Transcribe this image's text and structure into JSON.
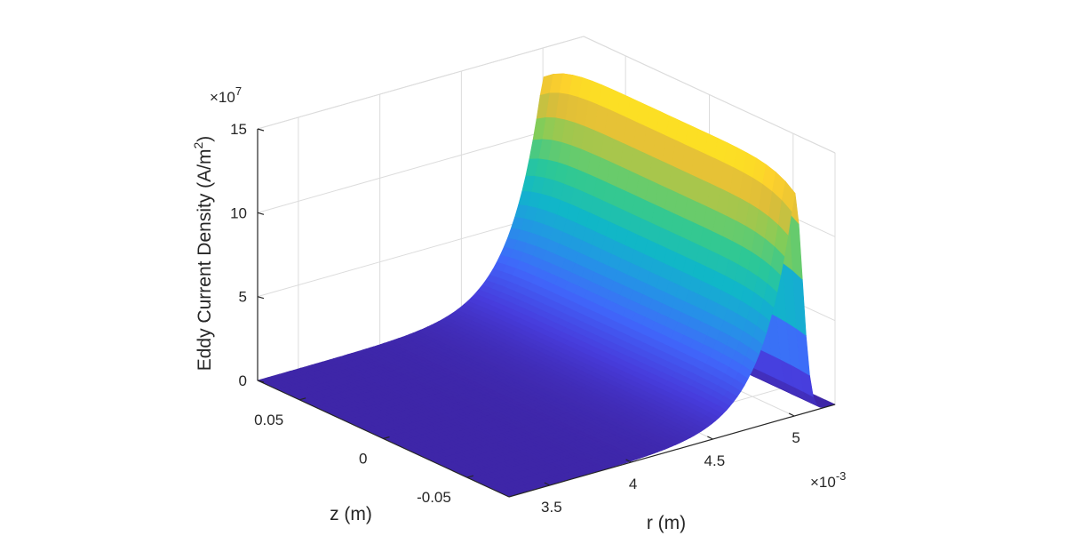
{
  "chart_data": {
    "type": "surface",
    "title": "",
    "xlabel": "r (m)",
    "ylabel": "z (m)",
    "zlabel": "Eddy Current Density (A/m",
    "zlabel_sup": "2",
    "zlabel_close": ")",
    "x_exponent_base": "×10",
    "x_exponent_power": "-3",
    "z_exponent_base": "×10",
    "z_exponent_power": "7",
    "xlim": [
      3.25,
      5.25
    ],
    "ylim": [
      -0.075,
      0.075
    ],
    "zlim": [
      0,
      150000000
    ],
    "x_ticks": [
      3.5,
      4,
      4.5,
      5
    ],
    "x_tick_labels": [
      "3.5",
      "4",
      "4.5",
      "5"
    ],
    "y_ticks": [
      -0.05,
      0,
      0.05
    ],
    "y_tick_labels": [
      "-0.05",
      "0",
      "0.05"
    ],
    "z_ticks": [
      0,
      50000000,
      100000000,
      150000000
    ],
    "z_tick_labels": [
      "0",
      "5",
      "10",
      "15"
    ],
    "grid": true,
    "colormap": "parula",
    "surface_model": {
      "description": "Current density concentrated near outer radius (skin effect), nearly uniform along z",
      "peak_value": 145000000,
      "peak_r": 5.0,
      "skin_depth_r": 0.19,
      "z_extent": [
        -0.075,
        0.075
      ],
      "r_extent": [
        3.25,
        5.25
      ]
    }
  }
}
